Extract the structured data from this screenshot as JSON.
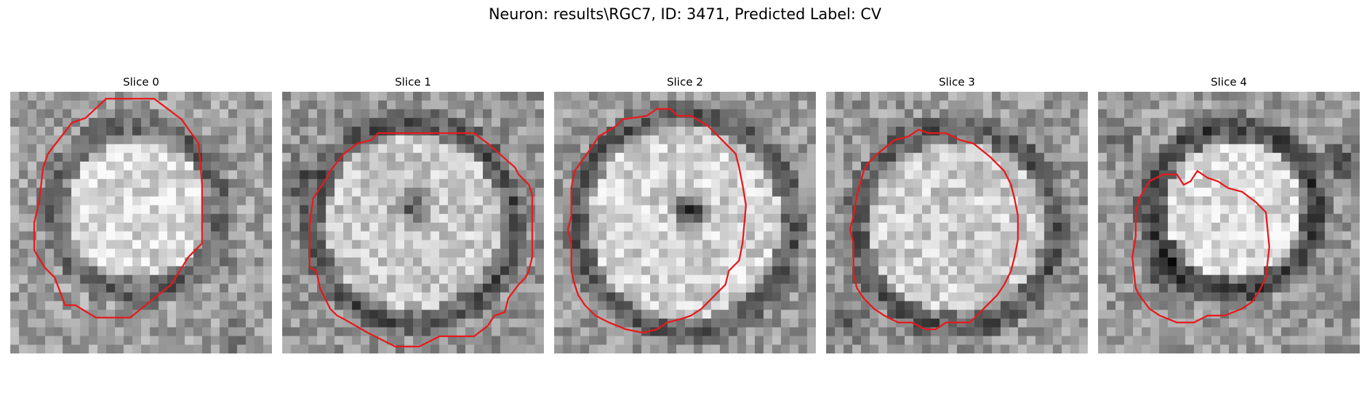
{
  "figure": {
    "title": "Neuron: results\\RGC7, ID: 3471, Predicted Label: CV"
  },
  "panels": [
    {
      "title": "Slice 0",
      "image": "grayscale-cell-crop",
      "contour": "cell-boundary-contour"
    },
    {
      "title": "Slice 1",
      "image": "grayscale-cell-crop",
      "contour": "cell-boundary-contour"
    },
    {
      "title": "Slice 2",
      "image": "grayscale-cell-crop",
      "contour": "cell-boundary-contour"
    },
    {
      "title": "Slice 3",
      "image": "grayscale-cell-crop",
      "contour": "cell-boundary-contour"
    },
    {
      "title": "Slice 4",
      "image": "grayscale-cell-crop",
      "contour": "cell-boundary-contour"
    }
  ],
  "colors": {
    "contour": "#e8191c",
    "background": "#ffffff"
  }
}
